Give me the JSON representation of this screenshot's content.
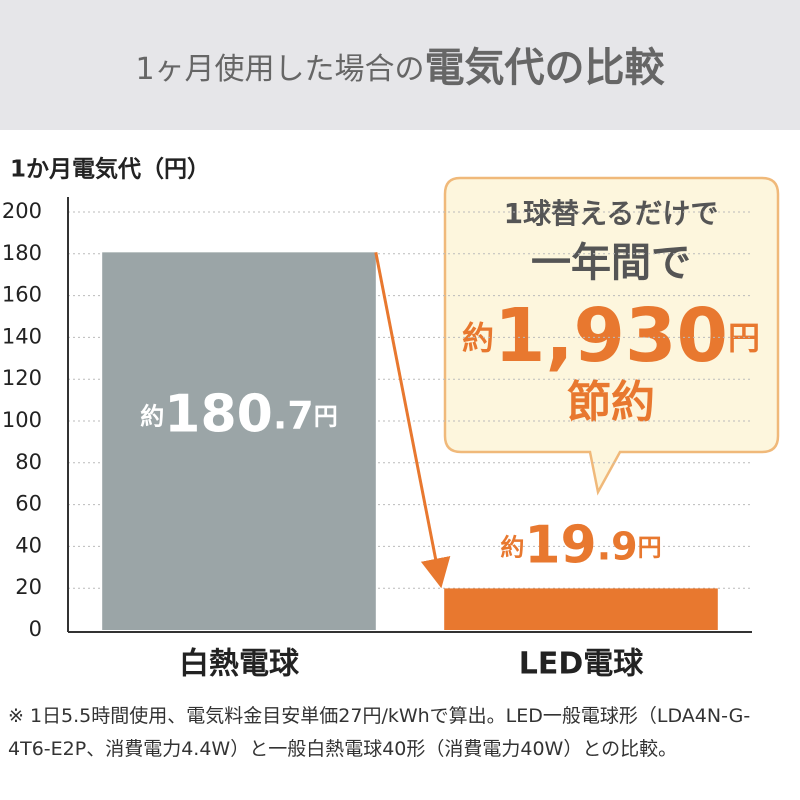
{
  "chart_data": {
    "type": "bar",
    "title": [
      "1ヶ月使用した場合の",
      "電気代の比較"
    ],
    "y_label": "1か月電気代（円）",
    "categories": [
      "白熱電球",
      "LED電球"
    ],
    "values": [
      180.7,
      19.9
    ],
    "value_labels": [
      "約180.7円",
      "約19.9円"
    ],
    "colors": [
      "#9ba5a7",
      "#e8782f"
    ],
    "ylim": [
      0,
      200
    ],
    "yticks": [
      0,
      20,
      40,
      60,
      80,
      100,
      120,
      140,
      160,
      180,
      200
    ],
    "grid": true,
    "callout": [
      "1球替えるだけで",
      "一年間で",
      "約1,930円",
      "節約"
    ],
    "note": "※ 1日5.5時間使用、電気料金目安単価27円/kWhで算出。LED一般電球形（LDA4N-G-4T6-E2P、消費電力4.4W）と一般白熱電球40形（消費電力40W）との比較。"
  }
}
